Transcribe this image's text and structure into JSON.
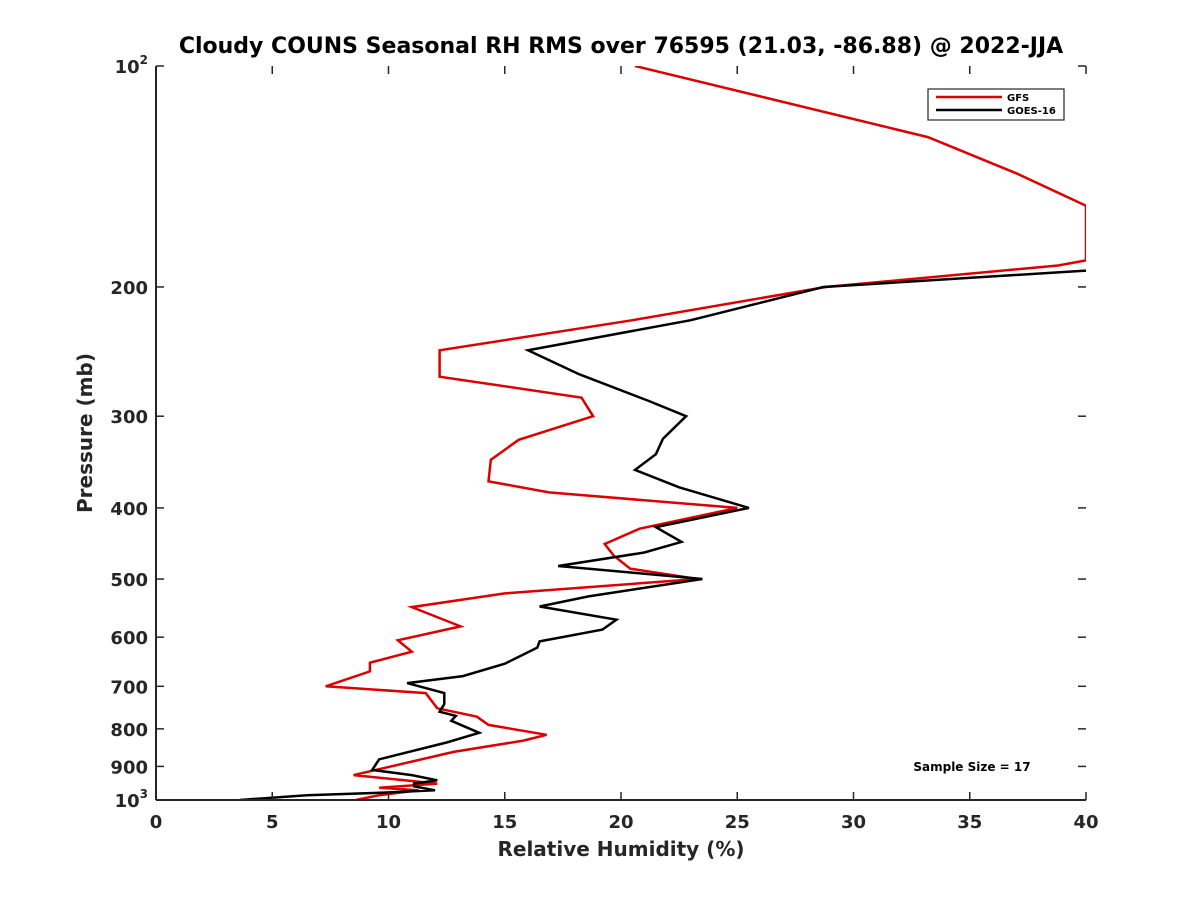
{
  "chart_data": {
    "type": "line",
    "title": "Cloudy COUNS Seasonal RH RMS over 76595 (21.03, -86.88) @ 2022-JJA",
    "xlabel": "Relative Humidity (%)",
    "ylabel": "Pressure (mb)",
    "xlim": [
      0,
      40
    ],
    "ylim": [
      100,
      1000
    ],
    "yscale": "log",
    "y_reversed": true,
    "x_ticks": [
      0,
      5,
      10,
      15,
      20,
      25,
      30,
      35,
      40
    ],
    "y_ticks": [
      {
        "value": 100,
        "base": "10",
        "exp": "2"
      },
      {
        "value": 200,
        "label": "200"
      },
      {
        "value": 300,
        "label": "300"
      },
      {
        "value": 400,
        "label": "400"
      },
      {
        "value": 500,
        "label": "500"
      },
      {
        "value": 600,
        "label": "600"
      },
      {
        "value": 700,
        "label": "700"
      },
      {
        "value": 800,
        "label": "800"
      },
      {
        "value": 900,
        "label": "900"
      },
      {
        "value": 1000,
        "base": "10",
        "exp": "3"
      }
    ],
    "legend_position": "top-right",
    "annotation": "Sample Size = 17",
    "series": [
      {
        "name": "GFS",
        "color": "#dd0000",
        "points": [
          [
            20.6,
            100
          ],
          [
            33.2,
            125
          ],
          [
            37.0,
            140
          ],
          [
            40.0,
            155
          ],
          [
            40.0,
            184
          ],
          [
            38.8,
            187
          ],
          [
            28.8,
            200
          ],
          [
            20.5,
            222
          ],
          [
            12.2,
            244
          ],
          [
            12.2,
            265
          ],
          [
            18.3,
            283
          ],
          [
            18.8,
            300
          ],
          [
            15.6,
            323
          ],
          [
            14.4,
            344
          ],
          [
            14.3,
            368
          ],
          [
            16.9,
            381
          ],
          [
            25.0,
            400
          ],
          [
            20.8,
            427
          ],
          [
            19.3,
            448
          ],
          [
            19.7,
            465
          ],
          [
            20.4,
            484
          ],
          [
            23.3,
            500
          ],
          [
            15.0,
            523
          ],
          [
            11.0,
            546
          ],
          [
            13.1,
            580
          ],
          [
            10.4,
            606
          ],
          [
            11.0,
            628
          ],
          [
            9.2,
            650
          ],
          [
            9.2,
            668
          ],
          [
            7.3,
            700
          ],
          [
            11.6,
            715
          ],
          [
            12.1,
            750
          ],
          [
            13.8,
            770
          ],
          [
            14.3,
            790
          ],
          [
            16.8,
            815
          ],
          [
            15.8,
            830
          ],
          [
            12.8,
            860
          ],
          [
            8.5,
            925
          ],
          [
            12.1,
            950
          ],
          [
            9.6,
            962
          ],
          [
            11.3,
            970
          ],
          [
            9.6,
            985
          ],
          [
            8.6,
            1000
          ]
        ]
      },
      {
        "name": "GOES-16",
        "color": "#000000",
        "points": [
          [
            40.0,
            190
          ],
          [
            28.7,
            200
          ],
          [
            23.0,
            222
          ],
          [
            16.0,
            244
          ],
          [
            18.2,
            263
          ],
          [
            21.2,
            286
          ],
          [
            22.8,
            300
          ],
          [
            21.8,
            322
          ],
          [
            21.5,
            338
          ],
          [
            20.6,
            355
          ],
          [
            22.5,
            375
          ],
          [
            25.5,
            400
          ],
          [
            21.5,
            425
          ],
          [
            22.6,
            445
          ],
          [
            21.0,
            460
          ],
          [
            17.3,
            480
          ],
          [
            23.5,
            500
          ],
          [
            18.6,
            528
          ],
          [
            16.5,
            545
          ],
          [
            19.8,
            568
          ],
          [
            19.2,
            586
          ],
          [
            16.5,
            608
          ],
          [
            16.4,
            620
          ],
          [
            15.0,
            652
          ],
          [
            13.2,
            678
          ],
          [
            10.8,
            693
          ],
          [
            12.4,
            715
          ],
          [
            12.4,
            740
          ],
          [
            12.2,
            758
          ],
          [
            12.9,
            768
          ],
          [
            12.7,
            780
          ],
          [
            13.9,
            810
          ],
          [
            12.5,
            835
          ],
          [
            9.6,
            880
          ],
          [
            9.3,
            910
          ],
          [
            11.0,
            925
          ],
          [
            12.1,
            940
          ],
          [
            11.1,
            950
          ],
          [
            11.1,
            958
          ],
          [
            12.0,
            970
          ],
          [
            9.5,
            978
          ],
          [
            6.5,
            985
          ],
          [
            3.6,
            1000
          ]
        ]
      }
    ]
  }
}
